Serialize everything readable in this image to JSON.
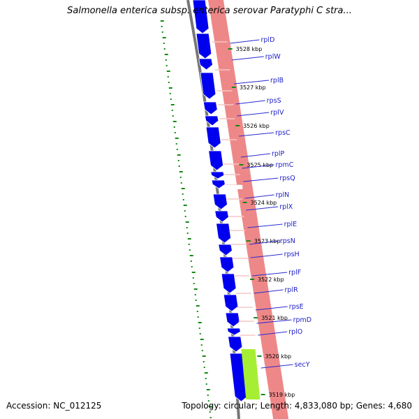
{
  "title": "Salmonella enterica subsp. enterica serovar Paratyphi C stra...",
  "footer": {
    "accession": "Accession: NC_012125",
    "summary": "Topology: circular; Length: 4,833,080 bp; Genes: 4,680"
  },
  "colors": {
    "cds": "#0000ee",
    "cds_track": "#ee8888",
    "secY_track": "#a6ee33",
    "backbone": "#777777",
    "gc_skew": "#138a13",
    "label_text": "#1c1cc8"
  },
  "position_ticks": [
    {
      "label": "3528 kbp"
    },
    {
      "label": "3527 kbp"
    },
    {
      "label": "3526 kbp"
    },
    {
      "label": "3525 kbp"
    },
    {
      "label": "3524 kbp"
    },
    {
      "label": "3523 kbp"
    },
    {
      "label": "3522 kbp"
    },
    {
      "label": "3521 kbp"
    },
    {
      "label": "3520 kbp"
    },
    {
      "label": "3519 kbp"
    }
  ],
  "genes": [
    {
      "label": "rplD"
    },
    {
      "label": "rplW"
    },
    {
      "label": "rplB"
    },
    {
      "label": "rpsS"
    },
    {
      "label": "rplV"
    },
    {
      "label": "rpsC"
    },
    {
      "label": "rplP"
    },
    {
      "label": "rpmC"
    },
    {
      "label": "rpsQ"
    },
    {
      "label": "rplN"
    },
    {
      "label": "rplX"
    },
    {
      "label": "rplE"
    },
    {
      "label": "rpsN"
    },
    {
      "label": "rpsH"
    },
    {
      "label": "rplF"
    },
    {
      "label": "rplR"
    },
    {
      "label": "rpsE"
    },
    {
      "label": "rpmD"
    },
    {
      "label": "rplO"
    },
    {
      "label": "secY"
    }
  ]
}
